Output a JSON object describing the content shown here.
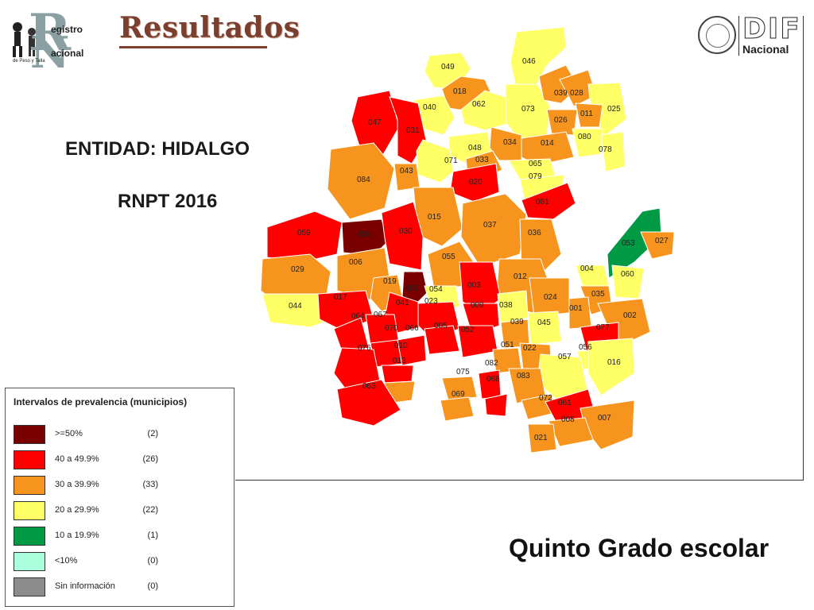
{
  "header": {
    "title": "Resultados",
    "logo_left": {
      "line1": "egistro",
      "line2": "acional",
      "line3": "de Peso y Talla"
    },
    "logo_right": {
      "word": "DIF",
      "sub": "Nacional"
    }
  },
  "entity": {
    "label": "ENTIDAD: HIDALGO",
    "program": "RNPT 2016"
  },
  "subtitle": "Quinto Grado escolar",
  "legend": {
    "title": "Intervalos de prevalencia (municipios)",
    "items": [
      {
        "label": ">=50%",
        "count": "(2)",
        "color": "#7a0000"
      },
      {
        "label": "40 a 49.9%",
        "count": "(26)",
        "color": "#ff0000"
      },
      {
        "label": "30 a 39.9%",
        "count": "(33)",
        "color": "#f7941d"
      },
      {
        "label": "20 a 29.9%",
        "count": "(22)",
        "color": "#ffff66"
      },
      {
        "label": "10 a 19.9%",
        "count": "(1)",
        "color": "#009944"
      },
      {
        "label": "<10%",
        "count": "(0)",
        "color": "#aaffdd"
      },
      {
        "label": "Sin información",
        "count": "(0)",
        "color": "#8c8c8c"
      }
    ]
  },
  "map": {
    "municipios": [
      {
        "code": "049",
        "class": "20 a 29.9%"
      },
      {
        "code": "046",
        "class": "20 a 29.9%"
      },
      {
        "code": "018",
        "class": "30 a 39.9%"
      },
      {
        "code": "062",
        "class": "20 a 29.9%"
      },
      {
        "code": "040",
        "class": "20 a 29.9%"
      },
      {
        "code": "073",
        "class": "20 a 29.9%"
      },
      {
        "code": "039",
        "class": "30 a 39.9%"
      },
      {
        "code": "028",
        "class": "30 a 39.9%"
      },
      {
        "code": "025",
        "class": "20 a 29.9%"
      },
      {
        "code": "011",
        "class": "30 a 39.9%"
      },
      {
        "code": "026",
        "class": "30 a 39.9%"
      },
      {
        "code": "047",
        "class": "40 a 49.9%"
      },
      {
        "code": "031",
        "class": "40 a 49.9%"
      },
      {
        "code": "080",
        "class": "20 a 29.9%"
      },
      {
        "code": "078",
        "class": "20 a 29.9%"
      },
      {
        "code": "048",
        "class": "20 a 29.9%"
      },
      {
        "code": "034",
        "class": "30 a 39.9%"
      },
      {
        "code": "014",
        "class": "30 a 39.9%"
      },
      {
        "code": "071",
        "class": "20 a 29.9%"
      },
      {
        "code": "033",
        "class": "30 a 39.9%"
      },
      {
        "code": "043",
        "class": "30 a 39.9%"
      },
      {
        "code": "065",
        "class": "20 a 29.9%"
      },
      {
        "code": "079",
        "class": "20 a 29.9%"
      },
      {
        "code": "084",
        "class": "30 a 39.9%"
      },
      {
        "code": "020",
        "class": "40 a 49.9%"
      },
      {
        "code": "081",
        "class": "40 a 49.9%"
      },
      {
        "code": "015",
        "class": "30 a 39.9%"
      },
      {
        "code": "037",
        "class": "30 a 39.9%"
      },
      {
        "code": "059",
        "class": "40 a 49.9%"
      },
      {
        "code": "058",
        "class": ">=50%"
      },
      {
        "code": "030",
        "class": "40 a 49.9%"
      },
      {
        "code": "036",
        "class": "30 a 39.9%"
      },
      {
        "code": "053",
        "class": "10 a 19.9%"
      },
      {
        "code": "027",
        "class": "30 a 39.9%"
      },
      {
        "code": "006",
        "class": "30 a 39.9%"
      },
      {
        "code": "055",
        "class": "30 a 39.9%"
      },
      {
        "code": "029",
        "class": "30 a 39.9%"
      },
      {
        "code": "004",
        "class": "20 a 29.9%"
      },
      {
        "code": "060",
        "class": "20 a 29.9%"
      },
      {
        "code": "012",
        "class": "30 a 39.9%"
      },
      {
        "code": "019",
        "class": "30 a 39.9%"
      },
      {
        "code": "050",
        "class": ">=50%"
      },
      {
        "code": "054",
        "class": "20 a 29.9%"
      },
      {
        "code": "003",
        "class": "40 a 49.9%"
      },
      {
        "code": "035",
        "class": "30 a 39.9%"
      },
      {
        "code": "044",
        "class": "20 a 29.9%"
      },
      {
        "code": "017",
        "class": "40 a 49.9%"
      },
      {
        "code": "041",
        "class": "40 a 49.9%"
      },
      {
        "code": "023",
        "class": "40 a 49.9%"
      },
      {
        "code": "009",
        "class": "40 a 49.9%"
      },
      {
        "code": "038",
        "class": "20 a 29.9%"
      },
      {
        "code": "024",
        "class": "30 a 39.9%"
      },
      {
        "code": "001",
        "class": "30 a 39.9%"
      },
      {
        "code": "002",
        "class": "30 a 39.9%"
      },
      {
        "code": "064",
        "class": "40 a 49.9%"
      },
      {
        "code": "067",
        "class": "40 a 49.9%"
      },
      {
        "code": "005",
        "class": "40 a 49.9%"
      },
      {
        "code": "052",
        "class": "40 a 49.9%"
      },
      {
        "code": "039b",
        "class": "30 a 39.9%"
      },
      {
        "code": "045",
        "class": "20 a 29.9%"
      },
      {
        "code": "077",
        "class": "40 a 49.9%"
      },
      {
        "code": "070",
        "class": "40 a 49.9%"
      },
      {
        "code": "066",
        "class": "40 a 49.9%"
      },
      {
        "code": "010",
        "class": "40 a 49.9%"
      },
      {
        "code": "076",
        "class": "40 a 49.9%"
      },
      {
        "code": "051",
        "class": "30 a 39.9%"
      },
      {
        "code": "022",
        "class": "30 a 39.9%"
      },
      {
        "code": "056",
        "class": "20 a 29.9%"
      },
      {
        "code": "057",
        "class": "20 a 29.9%"
      },
      {
        "code": "016",
        "class": "20 a 29.9%"
      },
      {
        "code": "013",
        "class": "30 a 39.9%"
      },
      {
        "code": "082",
        "class": "40 a 49.9%"
      },
      {
        "code": "075",
        "class": "30 a 39.9%"
      },
      {
        "code": "068",
        "class": "40 a 49.9%"
      },
      {
        "code": "083",
        "class": "30 a 39.9%"
      },
      {
        "code": "063",
        "class": "40 a 49.9%"
      },
      {
        "code": "069",
        "class": "30 a 39.9%"
      },
      {
        "code": "072",
        "class": "30 a 39.9%"
      },
      {
        "code": "061",
        "class": "40 a 49.9%"
      },
      {
        "code": "007",
        "class": "30 a 39.9%"
      },
      {
        "code": "008",
        "class": "30 a 39.9%"
      },
      {
        "code": "021",
        "class": "30 a 39.9%"
      }
    ]
  }
}
